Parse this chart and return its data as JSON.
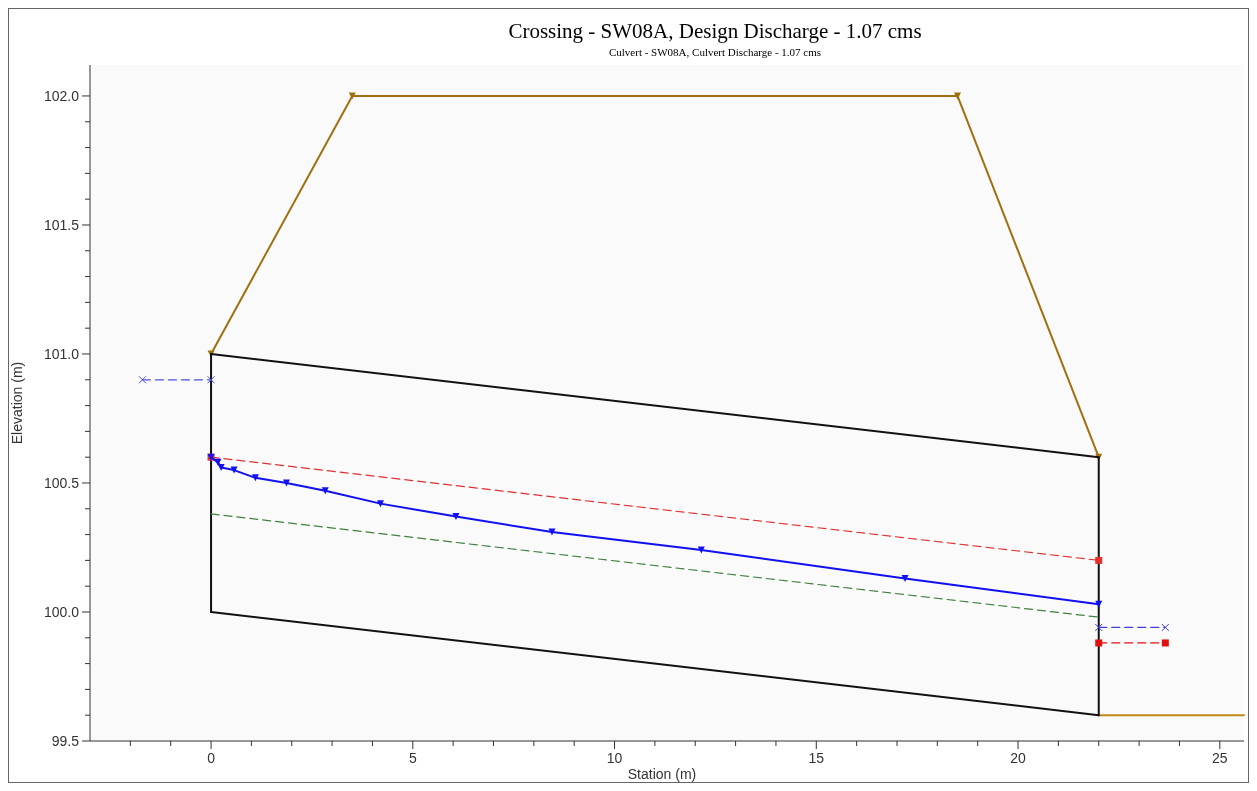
{
  "chart_data": {
    "type": "line",
    "title": "Crossing - SW08A, Design Discharge - 1.07 cms",
    "subtitle": "Culvert - SW08A, Culvert Discharge - 1.07 cms",
    "xlabel": "Station (m)",
    "ylabel": "Elevation (m)",
    "xlim": [
      -3,
      25.6
    ],
    "ylim": [
      99.5,
      102.12
    ],
    "xticks": [
      {
        "value": -2,
        "label": null
      },
      {
        "value": -1,
        "label": null
      },
      0,
      {
        "value": 1,
        "label": null
      },
      {
        "value": 2,
        "label": null
      },
      {
        "value": 3,
        "label": null
      },
      {
        "value": 4,
        "label": null
      },
      5,
      {
        "value": 6,
        "label": null
      },
      {
        "value": 7,
        "label": null
      },
      {
        "value": 8,
        "label": null
      },
      {
        "value": 9,
        "label": null
      },
      10,
      {
        "value": 11,
        "label": null
      },
      {
        "value": 12,
        "label": null
      },
      {
        "value": 13,
        "label": null
      },
      {
        "value": 14,
        "label": null
      },
      15,
      {
        "value": 16,
        "label": null
      },
      {
        "value": 17,
        "label": null
      },
      {
        "value": 18,
        "label": null
      },
      {
        "value": 19,
        "label": null
      },
      20,
      {
        "value": 21,
        "label": null
      },
      {
        "value": 22,
        "label": null
      },
      {
        "value": 23,
        "label": null
      },
      {
        "value": 24,
        "label": null
      },
      25
    ],
    "yticks": [
      99.5,
      {
        "value": 99.6,
        "label": null
      },
      {
        "value": 99.7,
        "label": null
      },
      {
        "value": 99.8,
        "label": null
      },
      {
        "value": 99.9,
        "label": null
      },
      {
        "value": 100,
        "label": "100.0"
      },
      {
        "value": 100.1,
        "label": null
      },
      {
        "value": 100.2,
        "label": null
      },
      {
        "value": 100.3,
        "label": null
      },
      {
        "value": 100.4,
        "label": null
      },
      100.5,
      {
        "value": 100.6,
        "label": null
      },
      {
        "value": 100.7,
        "label": null
      },
      {
        "value": 100.8,
        "label": null
      },
      {
        "value": 100.9,
        "label": null
      },
      {
        "value": 101,
        "label": "101.0"
      },
      {
        "value": 101.1,
        "label": null
      },
      {
        "value": 101.2,
        "label": null
      },
      {
        "value": 101.3,
        "label": null
      },
      {
        "value": 101.4,
        "label": null
      },
      101.5,
      {
        "value": 101.6,
        "label": null
      },
      {
        "value": 101.7,
        "label": null
      },
      {
        "value": 101.8,
        "label": null
      },
      {
        "value": 101.9,
        "label": null
      },
      {
        "value": 102,
        "label": "102.0"
      }
    ],
    "grid": false,
    "series": [
      {
        "color": "#a07010",
        "x": [
          0,
          3.5,
          18.5,
          22
        ],
        "values": [
          101,
          102,
          102,
          100.6
        ],
        "marker": "triangle",
        "line_style": "solid"
      },
      {
        "color": "#c08818",
        "x": [
          22,
          25.6
        ],
        "values": [
          99.6,
          99.6
        ],
        "marker": "none",
        "line_style": "solid"
      },
      {
        "color": "#111111",
        "x": [
          0,
          22
        ],
        "values": [
          101,
          100.6
        ],
        "marker": "none",
        "line_style": "solid"
      },
      {
        "color": "#111111",
        "x": [
          0,
          22
        ],
        "values": [
          100,
          99.6
        ],
        "marker": "none",
        "line_style": "solid"
      },
      {
        "color": "#111111",
        "x": [
          0,
          0
        ],
        "values": [
          100,
          101
        ],
        "marker": "none",
        "line_style": "solid"
      },
      {
        "color": "#111111",
        "x": [
          22,
          22
        ],
        "values": [
          99.6,
          100.6
        ],
        "marker": "none",
        "line_style": "solid"
      },
      {
        "color": "#5050e0",
        "x": [
          -1.7,
          0
        ],
        "values": [
          100.9,
          100.9
        ],
        "marker": "cross",
        "line_style": "dashed"
      },
      {
        "color": "#e03030",
        "x": [
          0,
          22
        ],
        "values": [
          100.6,
          100.2
        ],
        "marker": "square",
        "line_style": "dashed"
      },
      {
        "color": "#408040",
        "x": [
          0,
          22
        ],
        "values": [
          100.38,
          99.98
        ],
        "marker": "none",
        "line_style": "dashed"
      },
      {
        "color": "#1010f0",
        "x": [
          0,
          0.17,
          0.25,
          0.57,
          1.1,
          1.87,
          2.83,
          4.2,
          6.07,
          8.45,
          12.15,
          17.2,
          22
        ],
        "values": [
          100.6,
          100.58,
          100.56,
          100.55,
          100.52,
          100.5,
          100.47,
          100.42,
          100.37,
          100.31,
          100.24,
          100.13,
          100.03
        ],
        "marker": "triangle",
        "line_style": "solid"
      },
      {
        "color": "#4040e0",
        "x": [
          22,
          23.65
        ],
        "values": [
          99.94,
          99.94
        ],
        "marker": "cross",
        "line_style": "dashed"
      },
      {
        "color": "#e01010",
        "x": [
          22,
          23.65
        ],
        "values": [
          99.88,
          99.88
        ],
        "marker": "square",
        "line_style": "dashed"
      }
    ]
  }
}
